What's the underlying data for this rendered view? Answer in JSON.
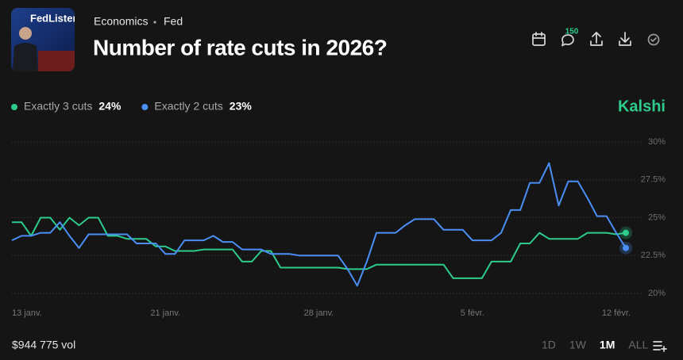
{
  "header": {
    "image_text": "FedListen",
    "category": "Economics",
    "subcategory": "Fed",
    "title": "Number of rate cuts in 2026?",
    "comment_count": "150"
  },
  "brand": "Kalshi",
  "footer": {
    "volume": "$944 775 vol",
    "ranges": [
      "1D",
      "1W",
      "1M",
      "ALL"
    ],
    "selected_range": 2
  },
  "chart_data": {
    "type": "line",
    "categories": [
      "13 janv.",
      null,
      null,
      null,
      null,
      null,
      null,
      null,
      null,
      null,
      null,
      null,
      null,
      null,
      null,
      null,
      "21 janv.",
      null,
      null,
      null,
      null,
      null,
      null,
      null,
      null,
      null,
      null,
      null,
      null,
      null,
      null,
      null,
      "28 janv.",
      null,
      null,
      null,
      null,
      null,
      null,
      null,
      null,
      null,
      null,
      null,
      null,
      null,
      null,
      null,
      "5 févr.",
      null,
      null,
      null,
      null,
      null,
      null,
      null,
      null,
      null,
      null,
      null,
      null,
      null,
      null,
      "12 févr.",
      null
    ],
    "series": [
      {
        "name": "Exactly 3 cuts",
        "color": "#2dcb8c",
        "current": {
          "value": 24,
          "label": "24%"
        },
        "values": [
          24.7,
          24.7,
          23.8,
          25,
          25,
          24.2,
          25,
          24.5,
          25,
          25,
          23.8,
          23.8,
          23.6,
          23.6,
          23.6,
          23.1,
          23.1,
          22.8,
          22.8,
          22.8,
          22.9,
          22.9,
          22.9,
          22.9,
          22.1,
          22.1,
          22.8,
          22.8,
          21.7,
          21.7,
          21.7,
          21.7,
          21.7,
          21.7,
          21.7,
          21.6,
          21.6,
          21.6,
          21.9,
          21.9,
          21.9,
          21.9,
          21.9,
          21.9,
          21.9,
          21.9,
          21,
          21,
          21,
          21,
          22.1,
          22.1,
          22.1,
          23.3,
          23.3,
          24,
          23.6,
          23.6,
          23.6,
          23.6,
          24,
          24,
          24,
          23.9,
          24
        ]
      },
      {
        "name": "Exactly 2 cuts",
        "color": "#4b8ef5",
        "current": {
          "value": 23,
          "label": "23%"
        },
        "values": [
          23.5,
          23.8,
          23.8,
          24,
          24,
          24.7,
          23.8,
          23,
          23.9,
          23.9,
          23.9,
          23.9,
          23.9,
          23.3,
          23.3,
          23.3,
          22.6,
          22.6,
          23.5,
          23.5,
          23.5,
          23.8,
          23.4,
          23.4,
          22.9,
          22.9,
          22.9,
          22.6,
          22.6,
          22.6,
          22.5,
          22.5,
          22.5,
          22.5,
          22.5,
          21.6,
          20.5,
          22.1,
          24,
          24,
          24,
          24.5,
          24.9,
          24.9,
          24.9,
          24.2,
          24.2,
          24.2,
          23.5,
          23.5,
          23.5,
          24,
          25.5,
          25.5,
          27.3,
          27.3,
          28.6,
          25.8,
          27.4,
          27.4,
          26.3,
          25.1,
          25.1,
          24,
          23
        ]
      }
    ],
    "ylim": [
      20,
      30
    ],
    "yticks": [
      {
        "value": 20,
        "label": "20%"
      },
      {
        "value": 22.5,
        "label": "22.5%"
      },
      {
        "value": 25,
        "label": "25%"
      },
      {
        "value": 27.5,
        "label": "27.5%"
      },
      {
        "value": 30,
        "label": "30%"
      }
    ],
    "grid": true
  }
}
